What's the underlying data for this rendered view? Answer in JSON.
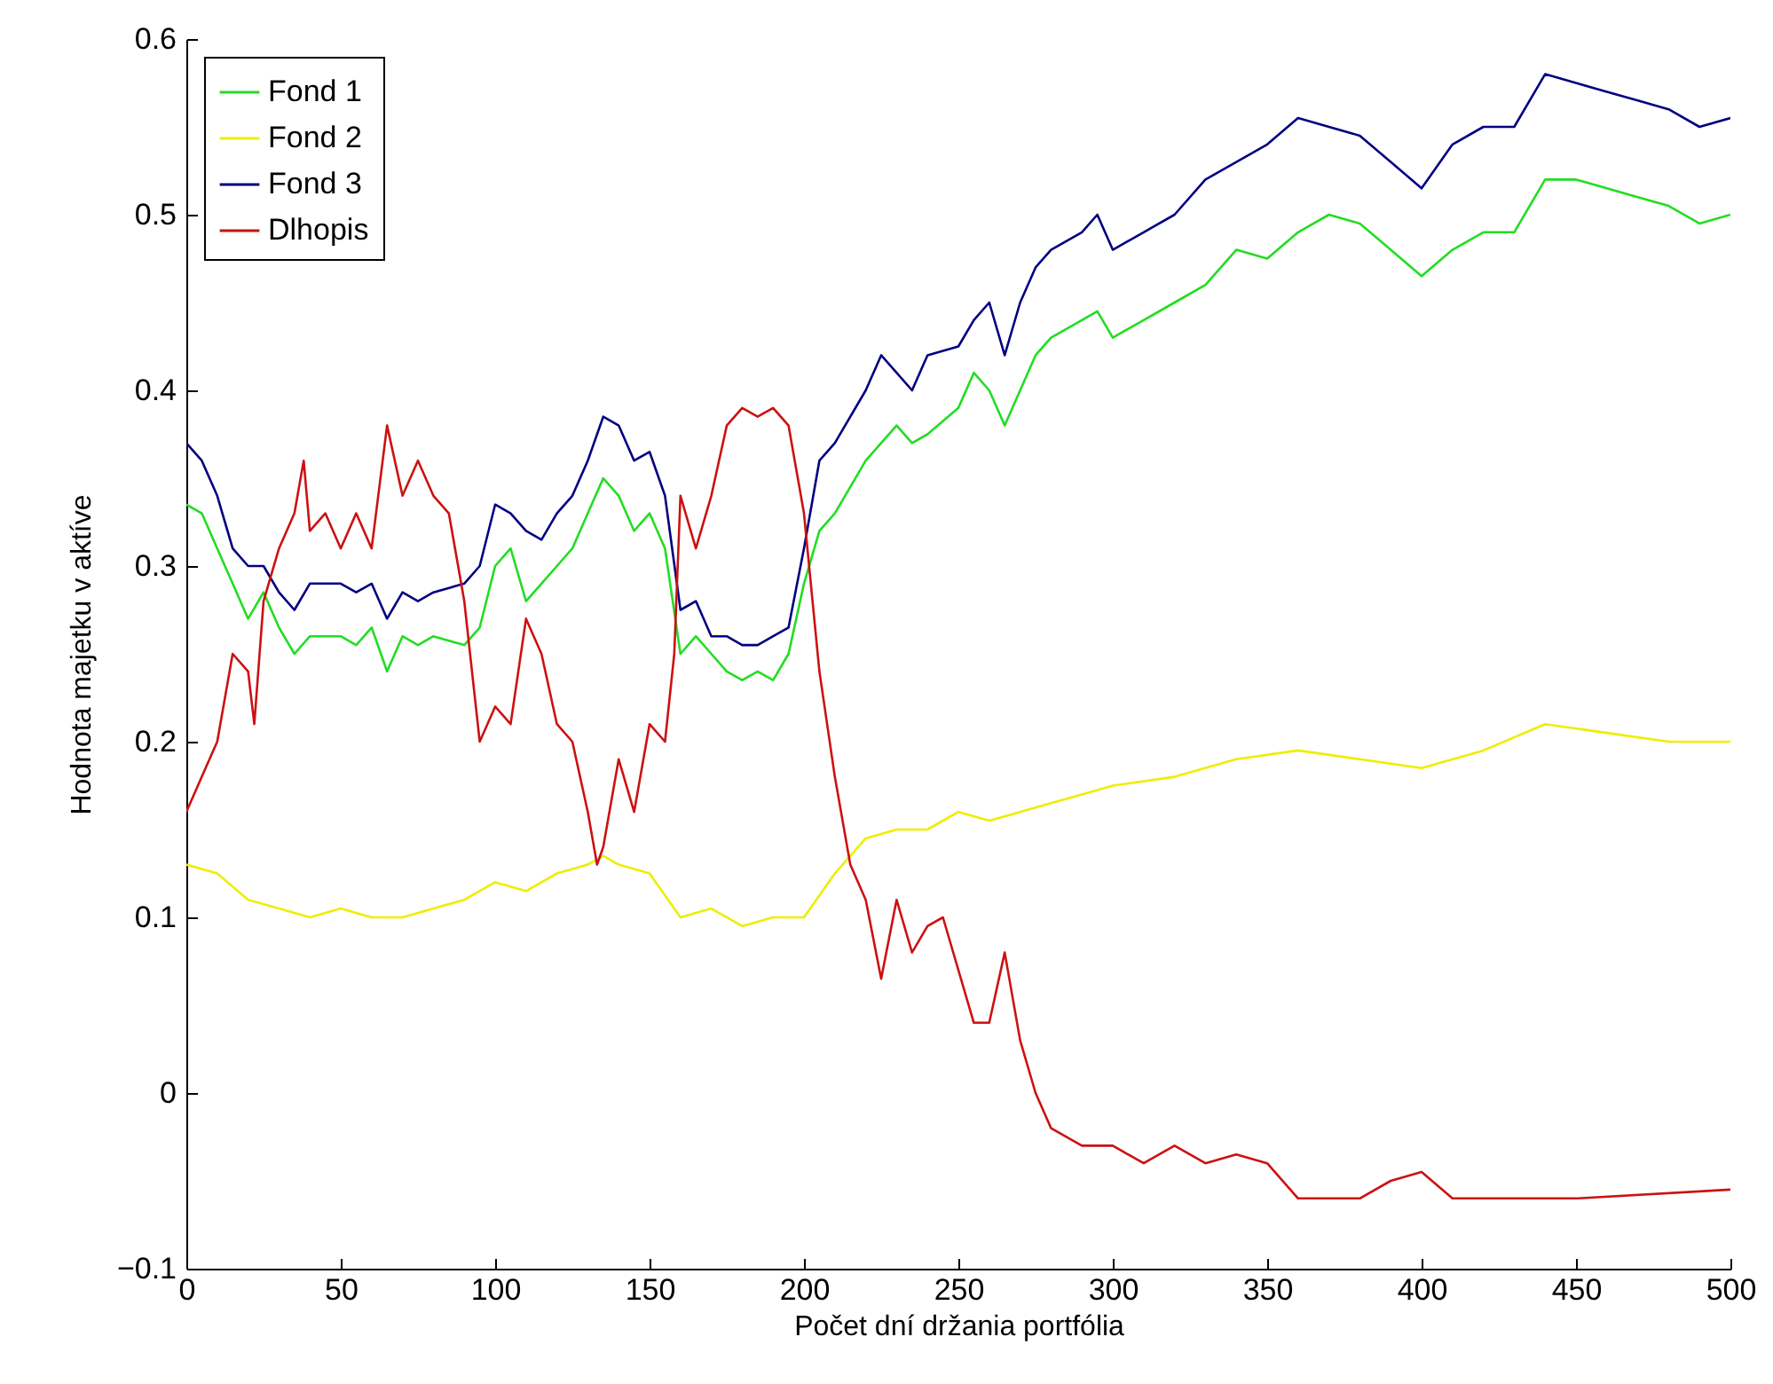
{
  "chart_data": {
    "type": "line",
    "xlabel": "Počet dní držania portfólia",
    "ylabel": "Hodnota majetku v aktíve",
    "xlim": [
      0,
      500
    ],
    "xticks": [
      0,
      50,
      100,
      150,
      200,
      250,
      300,
      350,
      400,
      450,
      500
    ],
    "ylim": [
      -0.1,
      0.6
    ],
    "yticks": [
      -0.1,
      0,
      0.1,
      0.2,
      0.3,
      0.4,
      0.5,
      0.6
    ],
    "grid": false,
    "legend": "top left",
    "marker": "none",
    "line_style": "solid",
    "series": [
      {
        "name": "Fond 1",
        "color": "#22dd22",
        "x": [
          0,
          5,
          10,
          15,
          20,
          25,
          30,
          35,
          40,
          50,
          55,
          60,
          65,
          70,
          75,
          80,
          90,
          95,
          100,
          105,
          110,
          115,
          120,
          125,
          130,
          135,
          140,
          145,
          150,
          155,
          160,
          165,
          170,
          175,
          180,
          185,
          190,
          195,
          200,
          205,
          210,
          220,
          225,
          230,
          235,
          240,
          250,
          255,
          260,
          265,
          270,
          275,
          280,
          290,
          295,
          300,
          310,
          320,
          330,
          340,
          350,
          360,
          370,
          380,
          390,
          400,
          410,
          420,
          430,
          440,
          450,
          460,
          470,
          480,
          490,
          500
        ],
        "values": [
          0.335,
          0.33,
          0.31,
          0.29,
          0.27,
          0.285,
          0.265,
          0.25,
          0.26,
          0.26,
          0.255,
          0.265,
          0.24,
          0.26,
          0.255,
          0.26,
          0.255,
          0.265,
          0.3,
          0.31,
          0.28,
          0.29,
          0.3,
          0.31,
          0.33,
          0.35,
          0.34,
          0.32,
          0.33,
          0.31,
          0.25,
          0.26,
          0.25,
          0.24,
          0.235,
          0.24,
          0.235,
          0.25,
          0.29,
          0.32,
          0.33,
          0.36,
          0.37,
          0.38,
          0.37,
          0.375,
          0.39,
          0.41,
          0.4,
          0.38,
          0.4,
          0.42,
          0.43,
          0.44,
          0.445,
          0.43,
          0.44,
          0.45,
          0.46,
          0.48,
          0.475,
          0.49,
          0.5,
          0.495,
          0.48,
          0.465,
          0.48,
          0.49,
          0.49,
          0.52,
          0.52,
          0.515,
          0.51,
          0.505,
          0.495,
          0.5
        ]
      },
      {
        "name": "Fond 2",
        "color": "#eeee00",
        "x": [
          0,
          10,
          20,
          30,
          40,
          50,
          60,
          70,
          80,
          90,
          100,
          110,
          120,
          130,
          135,
          140,
          150,
          160,
          170,
          180,
          190,
          200,
          210,
          220,
          230,
          240,
          250,
          260,
          270,
          280,
          290,
          300,
          320,
          340,
          360,
          380,
          400,
          420,
          440,
          460,
          480,
          500
        ],
        "values": [
          0.13,
          0.125,
          0.11,
          0.105,
          0.1,
          0.105,
          0.1,
          0.1,
          0.105,
          0.11,
          0.12,
          0.115,
          0.125,
          0.13,
          0.135,
          0.13,
          0.125,
          0.1,
          0.105,
          0.095,
          0.1,
          0.1,
          0.125,
          0.145,
          0.15,
          0.15,
          0.16,
          0.155,
          0.16,
          0.165,
          0.17,
          0.175,
          0.18,
          0.19,
          0.195,
          0.19,
          0.185,
          0.195,
          0.21,
          0.205,
          0.2,
          0.2
        ]
      },
      {
        "name": "Fond 3",
        "color": "#000080",
        "x": [
          0,
          5,
          10,
          15,
          20,
          25,
          30,
          35,
          40,
          50,
          55,
          60,
          65,
          70,
          75,
          80,
          90,
          95,
          100,
          105,
          110,
          115,
          120,
          125,
          130,
          135,
          140,
          145,
          150,
          155,
          160,
          165,
          170,
          175,
          180,
          185,
          190,
          195,
          200,
          205,
          210,
          220,
          225,
          230,
          235,
          240,
          250,
          255,
          260,
          265,
          270,
          275,
          280,
          290,
          295,
          300,
          310,
          320,
          330,
          340,
          350,
          360,
          370,
          380,
          390,
          400,
          410,
          420,
          430,
          440,
          450,
          460,
          470,
          480,
          490,
          500
        ],
        "values": [
          0.37,
          0.36,
          0.34,
          0.31,
          0.3,
          0.3,
          0.285,
          0.275,
          0.29,
          0.29,
          0.285,
          0.29,
          0.27,
          0.285,
          0.28,
          0.285,
          0.29,
          0.3,
          0.335,
          0.33,
          0.32,
          0.315,
          0.33,
          0.34,
          0.36,
          0.385,
          0.38,
          0.36,
          0.365,
          0.34,
          0.275,
          0.28,
          0.26,
          0.26,
          0.255,
          0.255,
          0.26,
          0.265,
          0.31,
          0.36,
          0.37,
          0.4,
          0.42,
          0.41,
          0.4,
          0.42,
          0.425,
          0.44,
          0.45,
          0.42,
          0.45,
          0.47,
          0.48,
          0.49,
          0.5,
          0.48,
          0.49,
          0.5,
          0.52,
          0.53,
          0.54,
          0.555,
          0.55,
          0.545,
          0.53,
          0.515,
          0.54,
          0.55,
          0.55,
          0.58,
          0.575,
          0.57,
          0.565,
          0.56,
          0.55,
          0.555
        ]
      },
      {
        "name": "Dlhopis",
        "color": "#cc1111",
        "x": [
          0,
          5,
          10,
          15,
          20,
          22,
          25,
          30,
          35,
          38,
          40,
          45,
          50,
          55,
          60,
          65,
          70,
          75,
          80,
          85,
          90,
          95,
          100,
          105,
          110,
          115,
          120,
          125,
          130,
          133,
          135,
          140,
          145,
          150,
          155,
          158,
          160,
          165,
          170,
          175,
          180,
          185,
          190,
          195,
          200,
          205,
          210,
          215,
          220,
          225,
          230,
          235,
          240,
          245,
          250,
          255,
          260,
          265,
          270,
          275,
          280,
          290,
          300,
          310,
          320,
          330,
          340,
          350,
          360,
          380,
          390,
          400,
          410,
          450,
          500
        ],
        "values": [
          0.16,
          0.18,
          0.2,
          0.25,
          0.24,
          0.21,
          0.28,
          0.31,
          0.33,
          0.36,
          0.32,
          0.33,
          0.31,
          0.33,
          0.31,
          0.38,
          0.34,
          0.36,
          0.34,
          0.33,
          0.28,
          0.2,
          0.22,
          0.21,
          0.27,
          0.25,
          0.21,
          0.2,
          0.16,
          0.13,
          0.14,
          0.19,
          0.16,
          0.21,
          0.2,
          0.25,
          0.34,
          0.31,
          0.34,
          0.38,
          0.39,
          0.385,
          0.39,
          0.38,
          0.33,
          0.24,
          0.18,
          0.13,
          0.11,
          0.065,
          0.11,
          0.08,
          0.095,
          0.1,
          0.07,
          0.04,
          0.04,
          0.08,
          0.03,
          0,
          -0.02,
          -0.03,
          -0.03,
          -0.04,
          -0.03,
          -0.04,
          -0.035,
          -0.04,
          -0.06,
          -0.06,
          -0.05,
          -0.045,
          -0.06,
          -0.06,
          -0.055
        ]
      }
    ]
  }
}
